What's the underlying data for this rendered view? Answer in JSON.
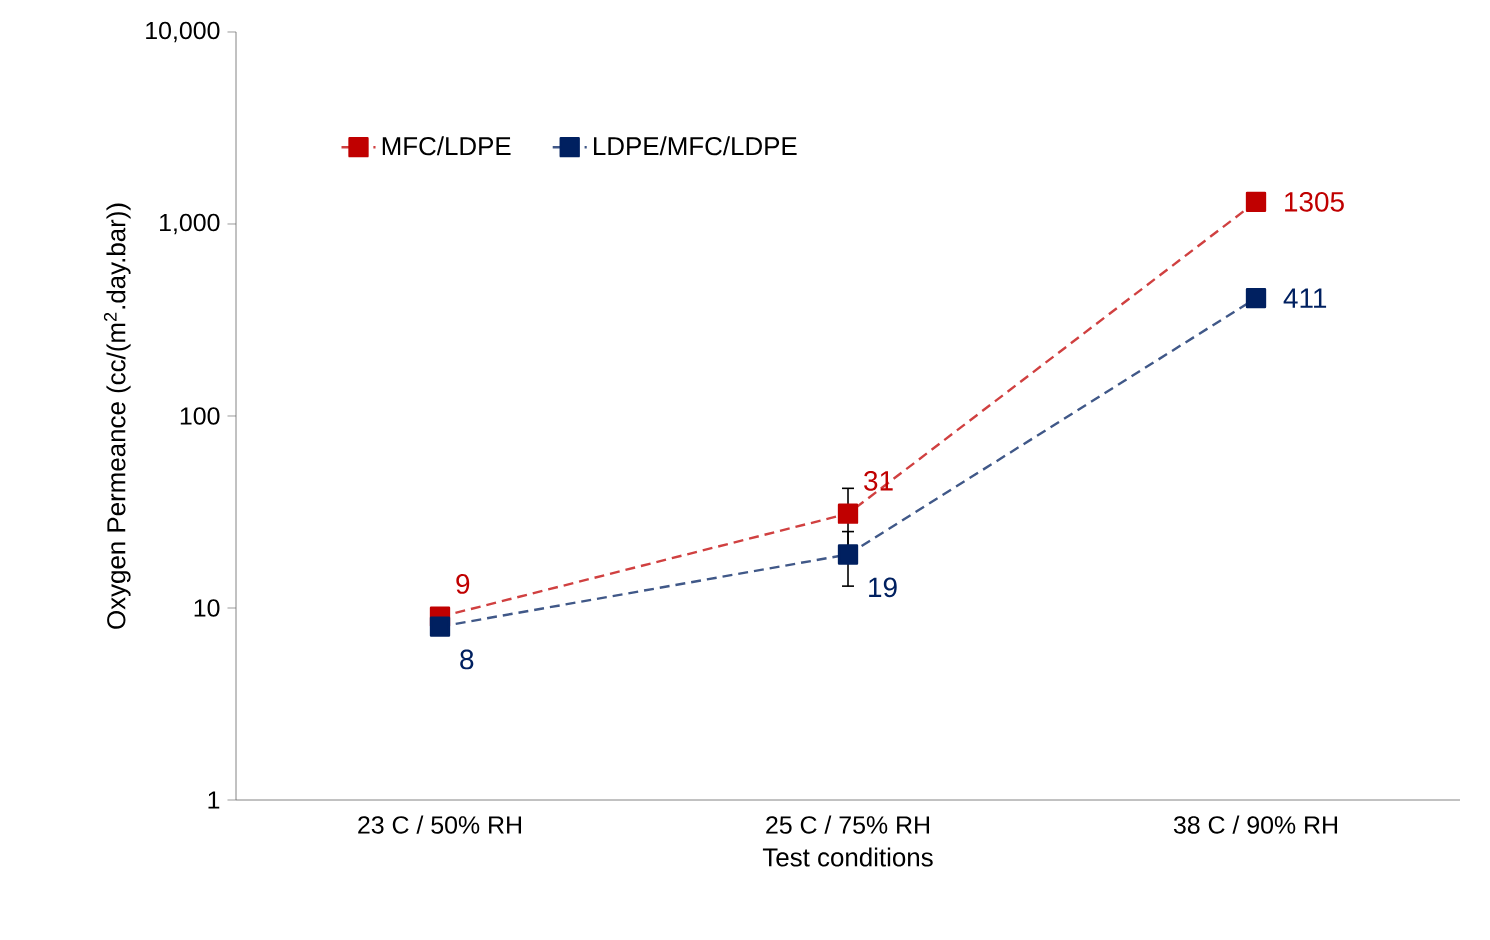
{
  "chart_data": {
    "type": "line",
    "xlabel": "Test conditions",
    "ylabel": "Oxygen Permeance (cc/(m$^{2}$.day.bar))",
    "categories": [
      "23 C / 50% RH",
      "25 C / 75% RH",
      "38 C / 90% RH"
    ],
    "series": [
      {
        "name": "MFC/LDPE",
        "color": "#c00000",
        "values": [
          9,
          31,
          1305
        ],
        "errors": [
          null,
          11,
          null
        ]
      },
      {
        "name": "LDPE/MFC/LDPE",
        "color": "#002060",
        "values": [
          8,
          19,
          411
        ],
        "errors": [
          null,
          6,
          null
        ]
      }
    ],
    "log": "y",
    "ylim": [
      1,
      10000
    ],
    "yticks": [
      1,
      10,
      100,
      {
        "value": 1000,
        "label": "1,000"
      },
      {
        "value": 10000,
        "label": "10,000"
      }
    ],
    "marker": "square",
    "line_style": "dashed",
    "legend": "top left",
    "data_labels": true,
    "grid": false
  }
}
